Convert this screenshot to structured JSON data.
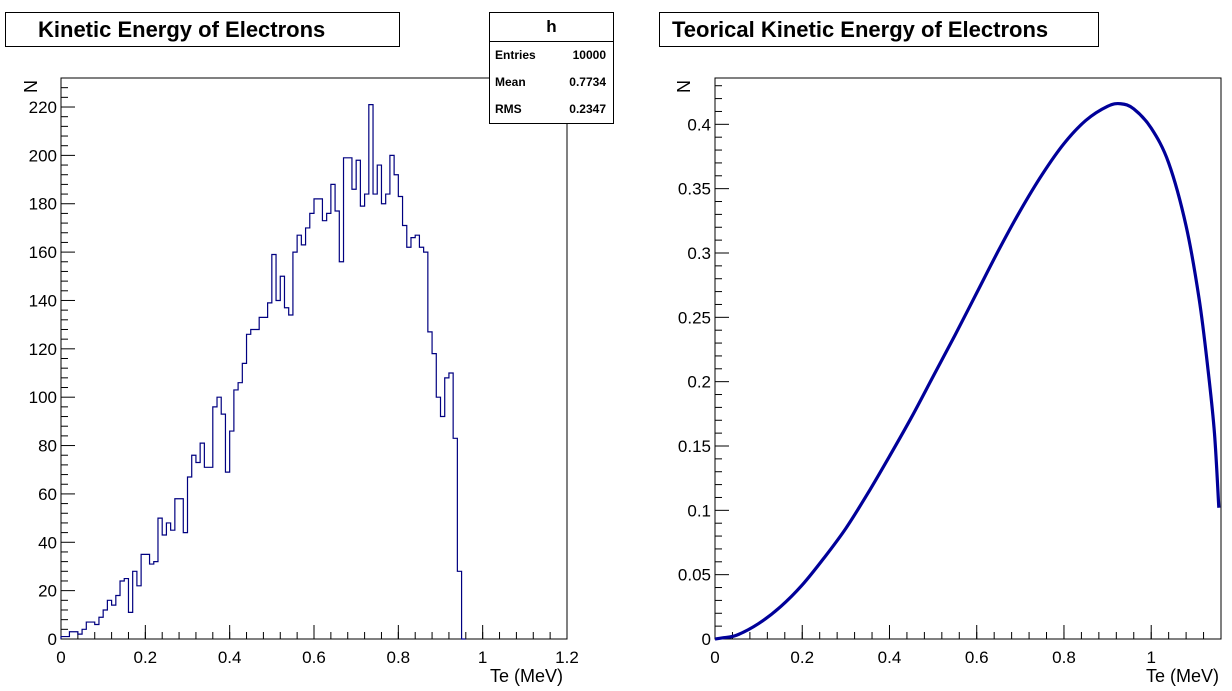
{
  "chart_data": [
    {
      "type": "histogram",
      "title": "Kinetic Energy of Electrons",
      "xlabel": "Te (MeV)",
      "ylabel": "N",
      "xlim": [
        0,
        1.2
      ],
      "ylim": [
        0,
        232
      ],
      "x_ticks": [
        "0",
        "0.2",
        "0.4",
        "0.6",
        "0.8",
        "1",
        "1.2"
      ],
      "y_ticks": [
        "0",
        "20",
        "40",
        "60",
        "80",
        "100",
        "120",
        "140",
        "160",
        "180",
        "200",
        "220"
      ],
      "bin_width": 0.01,
      "bin_start": 0,
      "values": [
        1,
        1,
        3,
        3,
        2,
        4,
        7,
        7,
        6,
        9,
        12,
        16,
        14,
        18,
        24,
        25,
        11,
        28,
        22,
        35,
        35,
        31,
        32,
        50,
        43,
        48,
        45,
        58,
        58,
        44,
        67,
        76,
        73,
        81,
        71,
        71,
        96,
        100,
        93,
        69,
        86,
        103,
        106,
        114,
        126,
        128,
        128,
        133,
        133,
        139,
        159,
        140,
        150,
        137,
        134,
        160,
        167,
        163,
        170,
        176,
        182,
        182,
        173,
        176,
        188,
        177,
        156,
        199,
        199,
        186,
        198,
        179,
        184,
        221,
        184,
        196,
        180,
        184,
        200,
        192,
        183,
        171,
        162,
        166,
        167,
        162,
        160,
        127,
        118,
        100,
        92,
        108,
        110,
        83,
        28,
        0
      ],
      "stats": {
        "name": "h",
        "entries_label": "Entries",
        "entries": "10000",
        "mean_label": "Mean",
        "mean": "0.7734",
        "rms_label": "RMS",
        "rms": "0.2347"
      },
      "line_color": "#000080"
    },
    {
      "type": "line",
      "title": "Teorical Kinetic Energy of Electrons",
      "xlabel": "Te (MeV)",
      "ylabel": "N",
      "xlim": [
        0,
        1.16
      ],
      "ylim": [
        0,
        0.436
      ],
      "x_ticks": [
        "0",
        "0.2",
        "0.4",
        "0.6",
        "0.8",
        "1"
      ],
      "y_ticks": [
        "0",
        "0.05",
        "0.1",
        "0.15",
        "0.2",
        "0.25",
        "0.3",
        "0.35",
        "0.4"
      ],
      "x": [
        0,
        0.02,
        0.05,
        0.1,
        0.15,
        0.2,
        0.25,
        0.3,
        0.35,
        0.4,
        0.45,
        0.5,
        0.55,
        0.6,
        0.65,
        0.7,
        0.75,
        0.8,
        0.85,
        0.9,
        0.93,
        0.96,
        1.0,
        1.04,
        1.08,
        1.11,
        1.13,
        1.145,
        1.155
      ],
      "y": [
        0,
        0.001,
        0.003,
        0.012,
        0.025,
        0.042,
        0.063,
        0.086,
        0.113,
        0.142,
        0.172,
        0.204,
        0.236,
        0.269,
        0.302,
        0.333,
        0.361,
        0.385,
        0.403,
        0.414,
        0.416,
        0.412,
        0.397,
        0.37,
        0.321,
        0.264,
        0.21,
        0.16,
        0.102
      ],
      "line_color": "#000099"
    }
  ]
}
